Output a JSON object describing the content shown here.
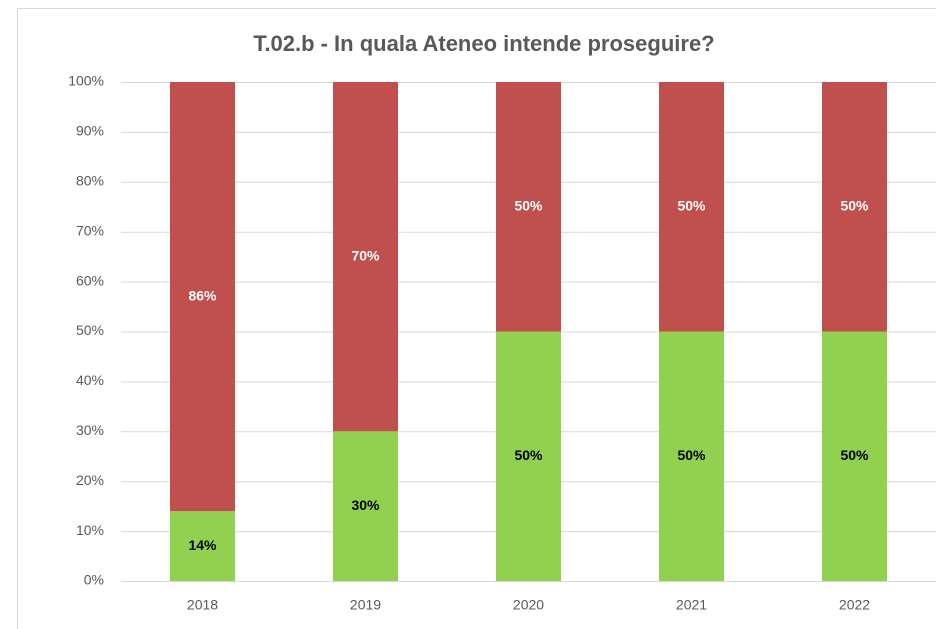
{
  "chart_data": {
    "type": "stacked-bar",
    "title": "T.02.b - In quala Ateneo intende proseguire?",
    "categories": [
      "2018",
      "2019",
      "2020",
      "2021",
      "2022"
    ],
    "series": [
      {
        "color": "#92d050",
        "values": [
          14,
          30,
          50,
          50,
          50
        ],
        "value_labels": [
          "14%",
          "30%",
          "50%",
          "50%",
          "50%"
        ]
      },
      {
        "color": "#c0504d",
        "values": [
          86,
          70,
          50,
          50,
          50
        ],
        "value_labels": [
          "86%",
          "70%",
          "50%",
          "50%",
          "50%"
        ]
      }
    ],
    "ylim": [
      0,
      100
    ],
    "yticks": [
      {
        "value": 0,
        "label": "0%"
      },
      {
        "value": 10,
        "label": "10%"
      },
      {
        "value": 20,
        "label": "20%"
      },
      {
        "value": 30,
        "label": "30%"
      },
      {
        "value": 40,
        "label": "40%"
      },
      {
        "value": 50,
        "label": "50%"
      },
      {
        "value": 60,
        "label": "60%"
      },
      {
        "value": 70,
        "label": "70%"
      },
      {
        "value": 80,
        "label": "80%"
      },
      {
        "value": 90,
        "label": "90%"
      },
      {
        "value": 100,
        "label": "100%"
      }
    ],
    "grid": true
  }
}
